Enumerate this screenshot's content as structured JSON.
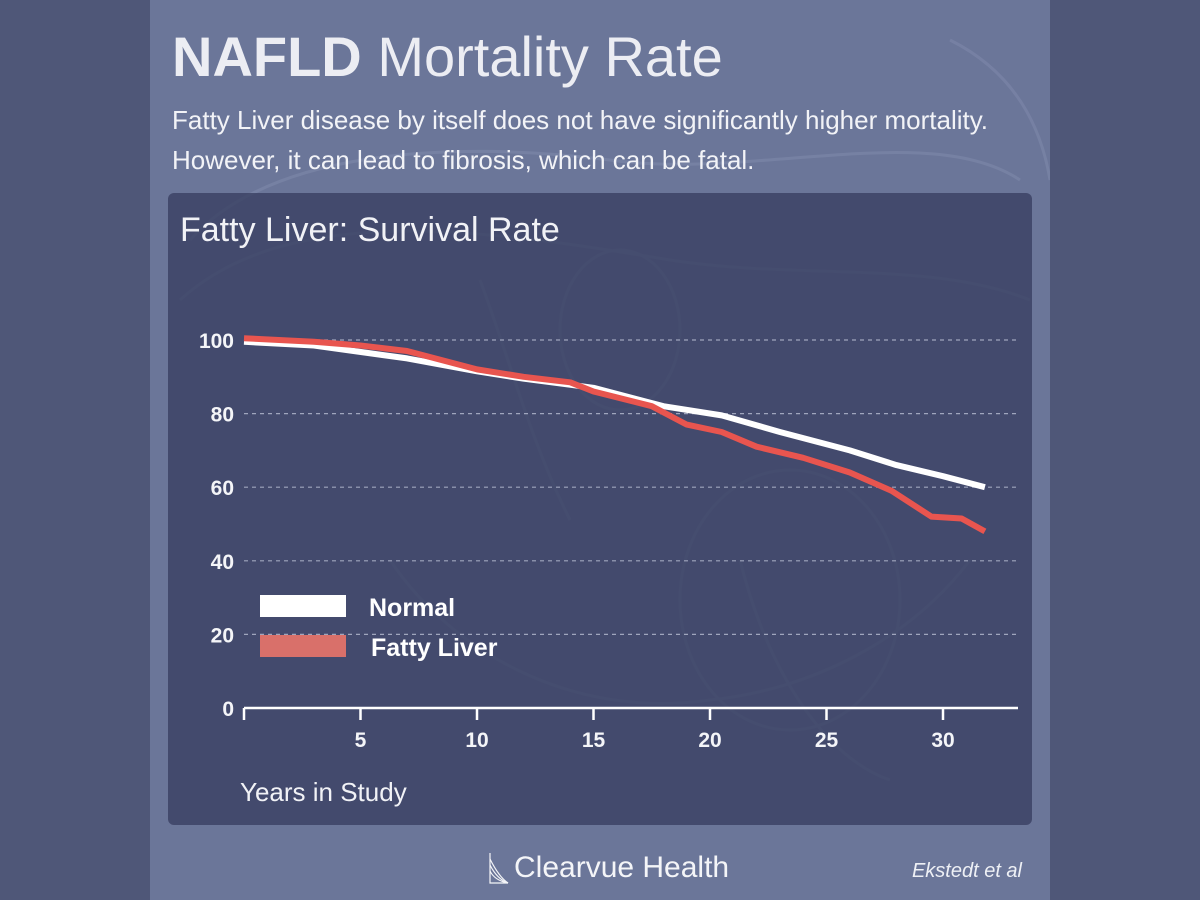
{
  "header": {
    "title_bold": "NAFLD",
    "title_rest": "Mortality Rate",
    "subtitle": "Fatty Liver disease by itself does not have significantly higher mortality. However, it can lead to fibrosis, which can be fatal."
  },
  "footer": {
    "brand": "Clearvue Health",
    "citation": "Ekstedt et al"
  },
  "colors": {
    "page_background": "#4f5778",
    "card_background": "#6b7699",
    "panel_background": "#3a4062",
    "normal_line": "#ffffff",
    "fatty_line": "#e8554f",
    "fatty_legend": "#d9706a"
  },
  "chart_data": {
    "type": "line",
    "title": "Fatty Liver: Survival Rate",
    "xlabel": "Years in Study",
    "ylabel": "",
    "xlim": [
      0,
      33
    ],
    "ylim": [
      0,
      100
    ],
    "xticks": [
      5,
      10,
      15,
      20,
      25,
      30
    ],
    "yticks": [
      0,
      20,
      40,
      60,
      80,
      100
    ],
    "grid": "horizontal dashed",
    "legend_position": "bottom-left",
    "series": [
      {
        "name": "Normal",
        "color": "#ffffff",
        "x": [
          0,
          3,
          7,
          10,
          12,
          15,
          18,
          20.5,
          23,
          26,
          28,
          30,
          31.8
        ],
        "y": [
          99.5,
          98.5,
          95,
          91.5,
          89.5,
          87,
          82,
          79.5,
          75,
          70,
          66,
          63,
          60
        ]
      },
      {
        "name": "Fatty Liver",
        "color": "#e8554f",
        "x": [
          0,
          3,
          5,
          7,
          10,
          12,
          14,
          15,
          17.5,
          19,
          20.5,
          22,
          24,
          26,
          27.8,
          29.5,
          30.8,
          31.8
        ],
        "y": [
          100.5,
          99.5,
          98.5,
          97,
          92,
          90,
          88.5,
          86,
          82,
          77,
          75,
          71,
          68,
          64,
          59,
          52,
          51.5,
          48
        ]
      }
    ]
  }
}
